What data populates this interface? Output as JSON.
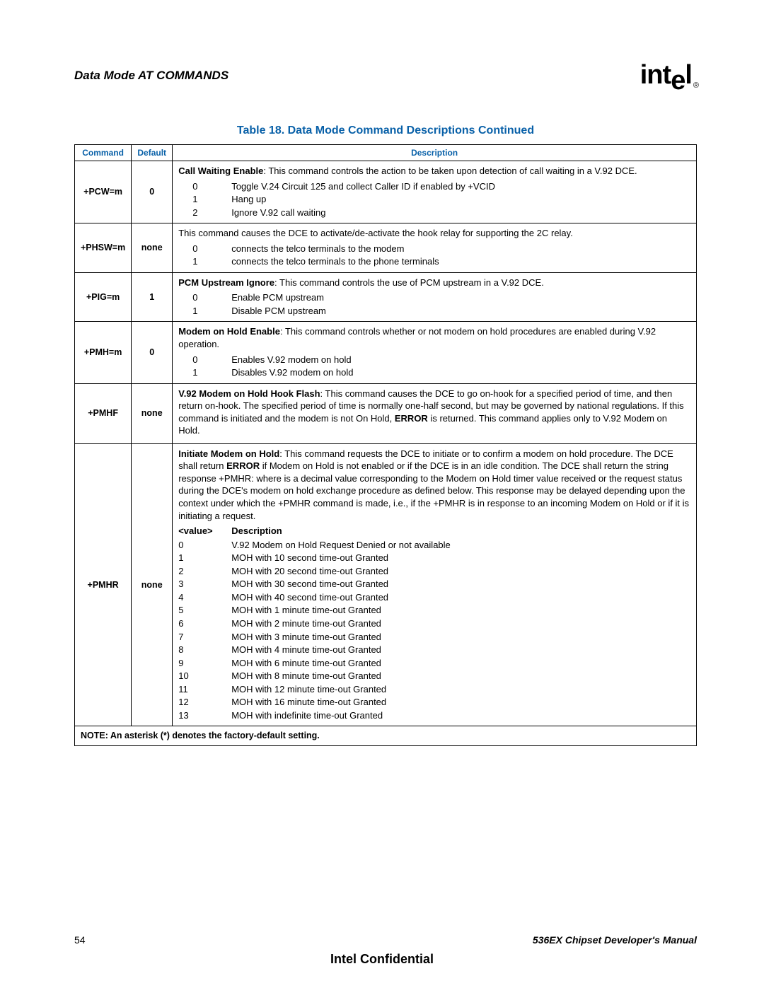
{
  "colors": {
    "accent": "#0860a8",
    "text": "#000000",
    "bg": "#ffffff",
    "border": "#000000"
  },
  "header": {
    "section": "Data Mode AT COMMANDS",
    "logo_text": "intel",
    "logo_reg": "®"
  },
  "table": {
    "title": "Table 18.  Data Mode Command Descriptions Continued",
    "columns": {
      "c1": "Command",
      "c2": "Default",
      "c3": "Description"
    },
    "rows": [
      {
        "command": "+PCW=m",
        "default": "0",
        "intro_bold": "Call Waiting Enable",
        "intro_rest": ": This command controls the action to be taken upon detection of call waiting in a V.92 DCE.",
        "opts": [
          {
            "k": "0",
            "v": "Toggle V.24 Circuit 125 and collect Caller ID if enabled by +VCID"
          },
          {
            "k": "1",
            "v": "Hang up"
          },
          {
            "k": "2",
            "v": "Ignore V.92 call waiting"
          }
        ]
      },
      {
        "command": "+PHSW=m",
        "default": "none",
        "intro_bold": "",
        "intro_rest": "This command causes the DCE to activate/de-activate the hook relay for supporting the 2C relay.",
        "opts": [
          {
            "k": "0",
            "v": "connects the telco terminals to the modem"
          },
          {
            "k": "1",
            "v": "connects the telco terminals to the phone terminals"
          }
        ]
      },
      {
        "command": "+PIG=m",
        "default": "1",
        "intro_bold": "PCM Upstream Ignore",
        "intro_rest": ": This command controls the use of PCM upstream in a V.92 DCE.",
        "opts": [
          {
            "k": "0",
            "v": "Enable PCM upstream"
          },
          {
            "k": "1",
            "v": "Disable PCM upstream"
          }
        ]
      },
      {
        "command": "+PMH=m",
        "default": "0",
        "intro_bold": "Modem on Hold Enable",
        "intro_rest": ": This command controls whether or not modem on hold procedures are enabled during V.92 operation.",
        "opts": [
          {
            "k": "0",
            "v": "Enables V.92 modem on hold"
          },
          {
            "k": "1",
            "v": "Disables V.92 modem on hold"
          }
        ]
      },
      {
        "command": "+PMHF",
        "default": "none",
        "intro_bold": "V.92 Modem on Hold Hook Flash",
        "intro_rest": ": This command causes the DCE to go on-hook for a specified period of time, and then return on-hook. The specified period of time is normally one-half second, but may be governed by national regulations. If this command is initiated and the modem is not On Hold, ",
        "intro_bold2": "ERROR",
        "intro_rest2": " is returned. This command applies only to V.92 Modem on Hold.",
        "opts": []
      },
      {
        "command": "+PMHR",
        "default": "none",
        "intro_bold": "Initiate Modem on Hold",
        "intro_rest": ": This command requests the DCE to initiate or to confirm a modem on hold procedure. The DCE shall return ",
        "intro_bold2": "ERROR",
        "intro_rest2": " if Modem on Hold is not enabled or if the DCE is in an idle condition. The DCE shall return the string response +PMHR: <value> where <value> is a decimal value corresponding to the Modem on Hold timer value received or the request status during the DCE's modem on hold exchange procedure as defined below. This response may be delayed depending upon the context under which the +PMHR command is made, i.e., if the +PMHR is in response to an incoming Modem on Hold or if it is initiating a request.",
        "subhead": {
          "k": "<value>",
          "v": "Description"
        },
        "opts": [
          {
            "k": "0",
            "v": "V.92 Modem on Hold Request Denied or not available"
          },
          {
            "k": "1",
            "v": "MOH with 10 second time-out Granted"
          },
          {
            "k": "2",
            "v": "MOH with 20 second time-out Granted"
          },
          {
            "k": "3",
            "v": "MOH with 30 second time-out Granted"
          },
          {
            "k": "4",
            "v": "MOH with 40 second time-out Granted"
          },
          {
            "k": "5",
            "v": "MOH with 1 minute time-out Granted"
          },
          {
            "k": "6",
            "v": "MOH with 2 minute time-out Granted"
          },
          {
            "k": "7",
            "v": "MOH with 3 minute time-out Granted"
          },
          {
            "k": "8",
            "v": "MOH with 4 minute time-out Granted"
          },
          {
            "k": "9",
            "v": "MOH with 6 minute time-out Granted"
          },
          {
            "k": "10",
            "v": "MOH with 8 minute time-out Granted"
          },
          {
            "k": "11",
            "v": "MOH with 12 minute time-out Granted"
          },
          {
            "k": "12",
            "v": "MOH with 16 minute time-out Granted"
          },
          {
            "k": "13",
            "v": "MOH with indefinite time-out Granted"
          }
        ]
      }
    ],
    "note": "NOTE:  An asterisk (*) denotes the factory-default setting."
  },
  "footer": {
    "page": "54",
    "manual": "536EX Chipset Developer's Manual",
    "confidential": "Intel Confidential"
  }
}
